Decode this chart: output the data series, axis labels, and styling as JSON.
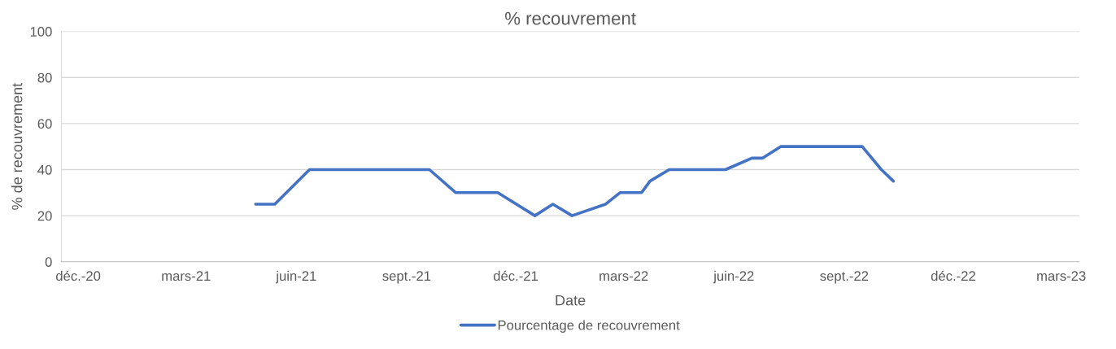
{
  "chart_data": {
    "type": "line",
    "title": "% recouvrement",
    "xlabel": "Date",
    "ylabel": "% de recouvrement",
    "x": [
      "2021-04-28",
      "2021-05-14",
      "2021-06-12",
      "2021-06-22",
      "2021-09-14",
      "2021-09-20",
      "2021-10-12",
      "2021-11-16",
      "2021-12-17",
      "2022-01-01",
      "2022-01-17",
      "2022-02-14",
      "2022-02-26",
      "2022-03-16",
      "2022-03-23",
      "2022-04-08",
      "2022-05-25",
      "2022-06-16",
      "2022-06-25",
      "2022-07-10",
      "2022-09-05",
      "2022-09-16",
      "2022-10-02",
      "2022-10-12"
    ],
    "series": [
      {
        "name": "Pourcentage de recouvrement",
        "color": "#4472c4",
        "values": [
          25,
          25,
          40,
          40,
          40,
          40,
          30,
          30,
          20,
          25,
          20,
          25,
          30,
          30,
          35,
          40,
          40,
          45,
          45,
          50,
          50,
          50,
          40,
          35
        ]
      }
    ],
    "xlim": [
      "2020-11-17",
      "2023-03-16"
    ],
    "xticks": [
      {
        "value": "2020-12-01",
        "label": "déc.-20"
      },
      {
        "value": "2021-03-01",
        "label": "mars-21"
      },
      {
        "value": "2021-06-01",
        "label": "juin-21"
      },
      {
        "value": "2021-09-01",
        "label": "sept.-21"
      },
      {
        "value": "2021-12-01",
        "label": "déc.-21"
      },
      {
        "value": "2022-03-01",
        "label": "mars-22"
      },
      {
        "value": "2022-06-01",
        "label": "juin-22"
      },
      {
        "value": "2022-09-01",
        "label": "sept.-22"
      },
      {
        "value": "2022-12-01",
        "label": "déc.-22"
      },
      {
        "value": "2023-03-01",
        "label": "mars-23"
      }
    ],
    "ylim": [
      0,
      100
    ],
    "yticks": [
      0,
      20,
      40,
      60,
      80,
      100
    ],
    "grid": "y",
    "legend": "bottom",
    "marker": "none",
    "line_style": "solid"
  }
}
